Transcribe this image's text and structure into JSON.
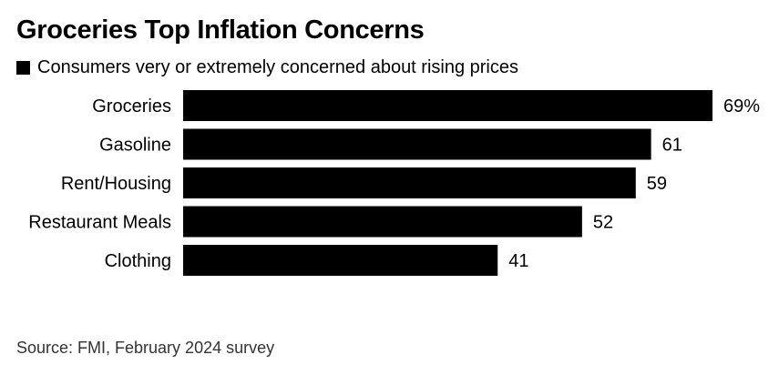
{
  "chart_data": {
    "type": "bar",
    "orientation": "horizontal",
    "title": "Groceries Top Inflation Concerns",
    "legend": {
      "entries": [
        {
          "label": "Consumers very or extremely concerned about rising prices",
          "color": "#000000"
        }
      ],
      "placement": "top-left"
    },
    "categories": [
      "Groceries",
      "Gasoline",
      "Rent/Housing",
      "Restaurant Meals",
      "Clothing"
    ],
    "series": [
      {
        "name": "Consumers very or extremely concerned about rising prices",
        "values": [
          69,
          61,
          59,
          52,
          41
        ]
      }
    ],
    "value_labels": [
      "69%",
      "61",
      "59",
      "52",
      "41"
    ],
    "xlim": [
      0,
      69
    ],
    "grid": false,
    "bar_color": "#000000"
  },
  "source": "Source: FMI, February 2024 survey"
}
